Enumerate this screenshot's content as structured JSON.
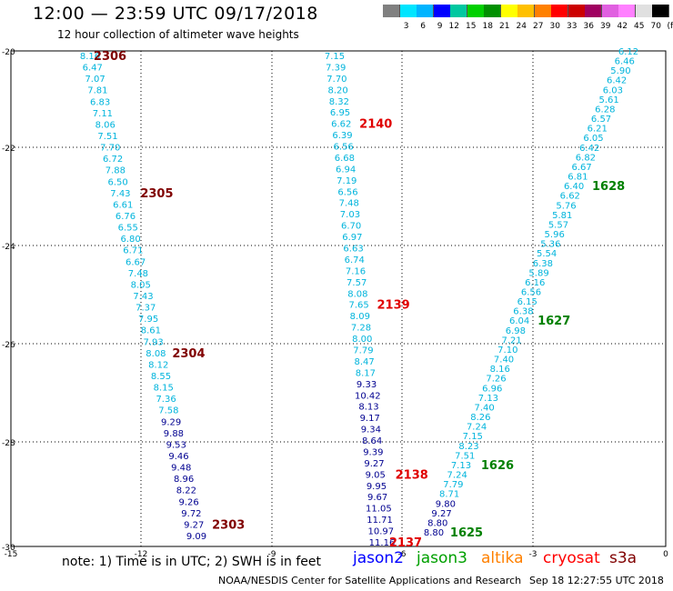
{
  "header": {
    "title": "12:00 — 23:59 UTC 09/17/2018",
    "subtitle": "12 hour collection of altimeter wave heights"
  },
  "legend": {
    "unit": "(ft)",
    "ticks": [
      "3",
      "6",
      "9",
      "12",
      "15",
      "18",
      "21",
      "24",
      "27",
      "30",
      "33",
      "36",
      "39",
      "42",
      "45",
      "70"
    ],
    "colors": [
      "#808080",
      "#00e5ff",
      "#00b4ff",
      "#0000ff",
      "#00c8a0",
      "#00d000",
      "#009000",
      "#ffff00",
      "#ffc000",
      "#ff8000",
      "#ff0000",
      "#cc0000",
      "#a00060",
      "#e060e0",
      "#ff80ff",
      "#e0e0e0",
      "#000000"
    ]
  },
  "axes": {
    "x_ticks": [
      "-15",
      "-12",
      "-9",
      "-6",
      "-3",
      "0"
    ],
    "y_ticks": [
      "-20",
      "-22",
      "-24",
      "-26",
      "-28",
      "-30"
    ]
  },
  "tracks": [
    {
      "id": "jason3-w",
      "color": "#00b4dc",
      "start": [
        99,
        61
      ],
      "end": [
        216,
        589
      ],
      "values": [
        "8.16",
        "6.47",
        "7.07",
        "7.81",
        "6.83",
        "7.11",
        "8.06",
        "7.51",
        "7.70",
        "6.72",
        "7.88",
        "6.50",
        "7.43",
        "6.61",
        "6.76",
        "6.55",
        "6.80",
        "6.71",
        "6.67",
        "7.48",
        "8.05",
        "7.43",
        "7.37",
        "7.95",
        "8.61",
        "7.93",
        "8.08",
        "8.12",
        "8.55",
        "8.15",
        "7.36",
        "7.58",
        "9.29",
        "9.88",
        "9.53",
        "9.46",
        "9.48",
        "8.96",
        "8.22",
        "9.26",
        "9.72",
        "9.27",
        "9.09"
      ],
      "dark_from": 32,
      "labels": [
        {
          "text": "2306",
          "at": 0,
          "dx": 22
        },
        {
          "text": "2305",
          "at": 12,
          "dx": 40
        },
        {
          "text": "2304",
          "at": 26,
          "dx": 36
        },
        {
          "text": "2303",
          "at": 41,
          "dx": 38
        }
      ],
      "label_color": "#800000"
    },
    {
      "id": "jason2-c",
      "color": "#00b4dc",
      "start": [
        368,
        61
      ],
      "end": [
        420,
        596
      ],
      "values": [
        "7.15",
        "7.39",
        "7.70",
        "8.20",
        "8.32",
        "6.95",
        "6.62",
        "6.39",
        "6.56",
        "6.68",
        "6.94",
        "7.19",
        "6.56",
        "7.48",
        "7.03",
        "6.70",
        "6.97",
        "6.63",
        "6.74",
        "7.16",
        "7.57",
        "8.08",
        "7.65",
        "8.09",
        "7.28",
        "8.00",
        "7.79",
        "8.47",
        "8.17",
        "9.33",
        "10.42",
        "8.13",
        "9.17",
        "9.34",
        "8.64",
        "9.39",
        "9.27",
        "9.05",
        "9.95",
        "9.67",
        "11.05",
        "11.71",
        "10.97",
        "11.16"
      ],
      "dark_from": 29,
      "labels": [
        {
          "text": "2140",
          "at": 6,
          "dx": 38
        },
        {
          "text": "2139",
          "at": 22,
          "dx": 38
        },
        {
          "text": "2138",
          "at": 37,
          "dx": 40
        },
        {
          "text": "2137",
          "at": 43,
          "dx": 26
        }
      ],
      "label_color": "#e00000"
    },
    {
      "id": "jason3-e",
      "color": "#00b4dc",
      "start": [
        691,
        56
      ],
      "end": [
        477,
        585
      ],
      "values": [
        "6.12",
        "6.46",
        "5.90",
        "6.42",
        "6.03",
        "5.61",
        "6.28",
        "6.57",
        "6.21",
        "6.05",
        "6.42",
        "6.82",
        "6.67",
        "6.81",
        "6.40",
        "6.62",
        "5.76",
        "5.81",
        "5.57",
        "5.96",
        "5.36",
        "5.54",
        "6.38",
        "5.89",
        "6.16",
        "6.56",
        "6.15",
        "6.38",
        "6.04",
        "6.98",
        "7.21",
        "7.10",
        "7.40",
        "8.16",
        "7.26",
        "6.96",
        "7.13",
        "7.40",
        "8.26",
        "7.24",
        "7.15",
        "8.23",
        "7.51",
        "7.13",
        "7.24",
        "7.79",
        "8.71",
        "9.80",
        "9.27",
        "8.80",
        "8.80"
      ],
      "dark_from": 47,
      "labels": [
        {
          "text": "1628",
          "at": 14,
          "dx": 38
        },
        {
          "text": "1627",
          "at": 28,
          "dx": 38
        },
        {
          "text": "1626",
          "at": 43,
          "dx": 40
        },
        {
          "text": "1625",
          "at": 50,
          "dx": 36
        }
      ],
      "label_color": "#008000"
    }
  ],
  "footer": {
    "note": "note: 1) Time is in UTC; 2) SWH is in feet",
    "satellites": [
      {
        "name": "jason2",
        "color": "#0000ff"
      },
      {
        "name": "jason3",
        "color": "#00a000"
      },
      {
        "name": "altika",
        "color": "#ff8000"
      },
      {
        "name": "cryosat",
        "color": "#ff0000"
      },
      {
        "name": "s3a",
        "color": "#800000"
      }
    ],
    "credit": "NOAA/NESDIS Center for Satellite Applications and Research",
    "timestamp": "Sep 18 12:27:55 UTC 2018"
  }
}
